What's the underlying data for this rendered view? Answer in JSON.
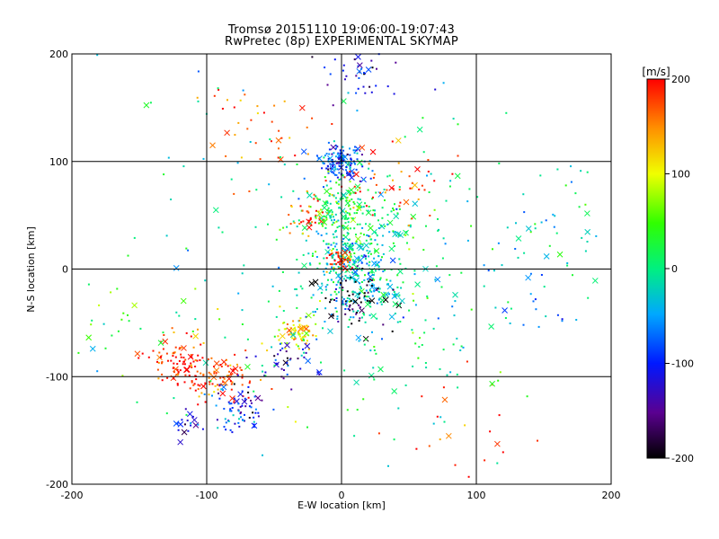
{
  "chart_data": {
    "type": "scatter",
    "title": "Tromsø 20151110 19:06:00-19:07:43",
    "subtitle": "RwPretec (8p) EXPERIMENTAL SKYMAP",
    "xlabel": "E-W location [km]",
    "ylabel": "N-S location [km]",
    "xlim": [
      -200,
      200
    ],
    "ylim": [
      -200,
      200
    ],
    "x_ticks": [
      "-200",
      "-100",
      "0",
      "100",
      "200"
    ],
    "y_ticks": [
      "-200",
      "-100",
      "0",
      "100",
      "200"
    ],
    "grid": true,
    "colorbar": {
      "label": "[m/s]",
      "range": [
        -200,
        200
      ],
      "ticks": [
        "200",
        "100",
        "0",
        "-100",
        "-200"
      ],
      "colormap": "black-purple-blue-cyan-green-yellow-red"
    },
    "marker_legend": [
      "dot",
      "x"
    ],
    "clusters": [
      {
        "x": 0,
        "y": 100,
        "count": 140,
        "spread": 8,
        "value": -85
      },
      {
        "x": -5,
        "y": 55,
        "count": 120,
        "spread": 12,
        "value": 20
      },
      {
        "x": -25,
        "y": 50,
        "count": 40,
        "spread": 8,
        "value": 180
      },
      {
        "x": 20,
        "y": 40,
        "count": 140,
        "spread": 25,
        "value": 10
      },
      {
        "x": 5,
        "y": 8,
        "count": 150,
        "spread": 14,
        "value": -20
      },
      {
        "x": 0,
        "y": 8,
        "count": 50,
        "spread": 5,
        "value": 190
      },
      {
        "x": 10,
        "y": -20,
        "count": 150,
        "spread": 18,
        "value": -30
      },
      {
        "x": 10,
        "y": -25,
        "count": 60,
        "spread": 15,
        "value": -200
      },
      {
        "x": -35,
        "y": -60,
        "count": 70,
        "spread": 8,
        "value": 110
      },
      {
        "x": -120,
        "y": -85,
        "count": 90,
        "spread": 12,
        "value": 190
      },
      {
        "x": -90,
        "y": -100,
        "count": 90,
        "spread": 14,
        "value": 185
      },
      {
        "x": -75,
        "y": -125,
        "count": 40,
        "spread": 10,
        "value": -120
      },
      {
        "x": -75,
        "y": -140,
        "count": 30,
        "spread": 8,
        "value": -70
      },
      {
        "x": -115,
        "y": -145,
        "count": 20,
        "spread": 6,
        "value": -110
      },
      {
        "x": -40,
        "y": -90,
        "count": 40,
        "spread": 12,
        "value": -110
      },
      {
        "x": 10,
        "y": 185,
        "count": 50,
        "spread": 18,
        "value": -110
      },
      {
        "x": -60,
        "y": 130,
        "count": 40,
        "spread": 25,
        "value": 160
      },
      {
        "x": 40,
        "y": 80,
        "count": 50,
        "spread": 20,
        "value": 170
      },
      {
        "x": 150,
        "y": 40,
        "count": 40,
        "spread": 30,
        "value": -20
      },
      {
        "x": 130,
        "y": -30,
        "count": 25,
        "spread": 25,
        "value": -40
      },
      {
        "x": 90,
        "y": -150,
        "count": 20,
        "spread": 30,
        "value": 190
      },
      {
        "x": -170,
        "y": -40,
        "count": 25,
        "spread": 25,
        "value": 30
      },
      {
        "x": 50,
        "y": -50,
        "count": 60,
        "spread": 30,
        "value": 0
      },
      {
        "x": 0,
        "y": 0,
        "count": 200,
        "spread": 90,
        "value": 0
      }
    ]
  }
}
